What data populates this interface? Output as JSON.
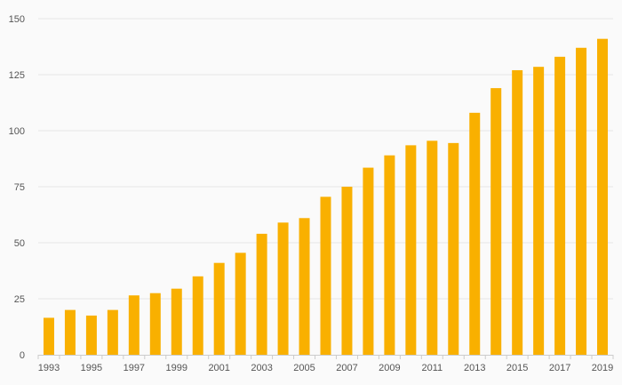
{
  "chart_data": {
    "type": "bar",
    "title": "",
    "xlabel": "",
    "ylabel": "",
    "categories": [
      "1993",
      "1994",
      "1995",
      "1996",
      "1997",
      "1998",
      "1999",
      "2000",
      "2001",
      "2002",
      "2003",
      "2004",
      "2005",
      "2006",
      "2007",
      "2008",
      "2009",
      "2010",
      "2011",
      "2012",
      "2013",
      "2014",
      "2015",
      "2016",
      "2017",
      "2018",
      "2019"
    ],
    "values": [
      16.5,
      20,
      17.5,
      20,
      26.5,
      27.5,
      29.5,
      35,
      41,
      45.5,
      54,
      59,
      61,
      70.5,
      75,
      83.5,
      89,
      93.5,
      95.5,
      94.5,
      108,
      119,
      127,
      128.5,
      133,
      137,
      141
    ],
    "ylim": [
      0,
      150
    ],
    "yticks": [
      "0",
      "25",
      "50",
      "75",
      "100",
      "125",
      "150"
    ],
    "xtick_labels": [
      "1993",
      "1995",
      "1997",
      "1999",
      "2001",
      "2003",
      "2005",
      "2007",
      "2009",
      "2011",
      "2013",
      "2015",
      "2017",
      "2019"
    ],
    "grid": true,
    "legend": "none",
    "colors": {
      "bar": "#f9b000",
      "grid": "#e6e6e6",
      "axis": "#cccccc",
      "text": "#555555",
      "background": "#fafafa"
    }
  }
}
